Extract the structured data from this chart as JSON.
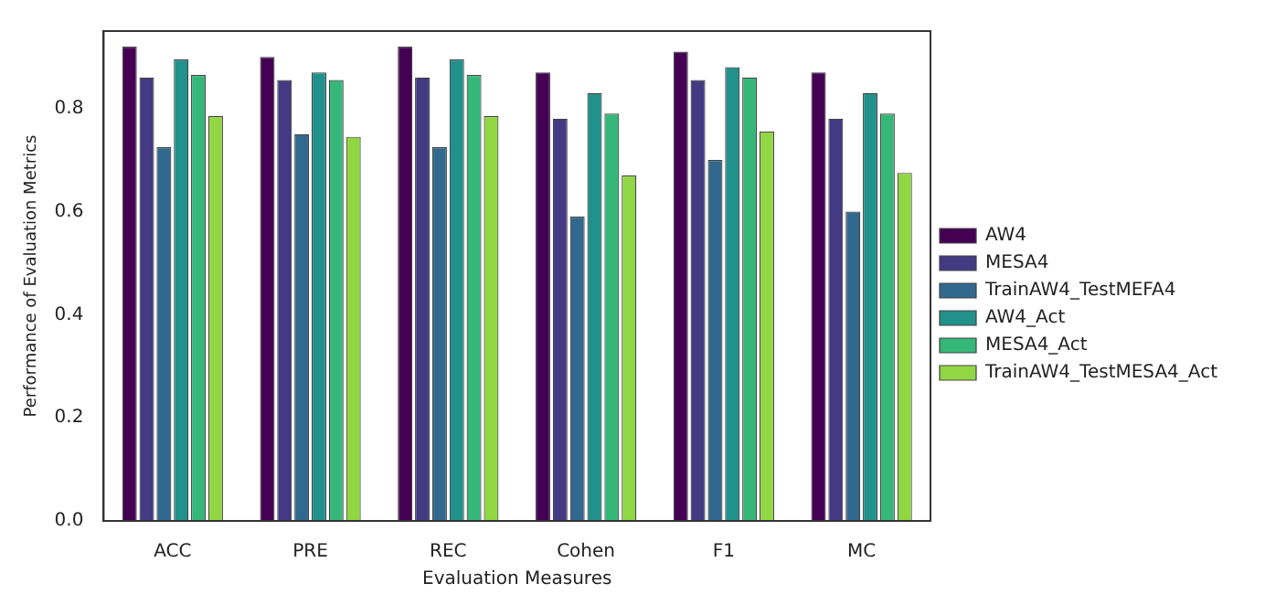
{
  "chart_data": {
    "type": "bar",
    "xlabel": "Evaluation Measures",
    "ylabel": "Performance of Evaluation Metrics",
    "categories": [
      "ACC",
      "PRE",
      "REC",
      "Cohen",
      "F1",
      "MC"
    ],
    "series": [
      {
        "name": "AW4",
        "color": "#440154",
        "values": [
          0.92,
          0.9,
          0.92,
          0.87,
          0.91,
          0.87
        ]
      },
      {
        "name": "MESA4",
        "color": "#443983",
        "values": [
          0.86,
          0.855,
          0.86,
          0.78,
          0.855,
          0.78
        ]
      },
      {
        "name": "TrainAW4_TestMEFA4",
        "color": "#31688e",
        "values": [
          0.725,
          0.75,
          0.725,
          0.59,
          0.7,
          0.6
        ]
      },
      {
        "name": "AW4_Act",
        "color": "#21918c",
        "values": [
          0.895,
          0.87,
          0.895,
          0.83,
          0.88,
          0.83
        ]
      },
      {
        "name": "MESA4_Act",
        "color": "#35b779",
        "values": [
          0.865,
          0.855,
          0.865,
          0.79,
          0.86,
          0.79
        ]
      },
      {
        "name": "TrainAW4_TestMESA4_Act",
        "color": "#90d743",
        "values": [
          0.785,
          0.745,
          0.785,
          0.67,
          0.755,
          0.675
        ]
      }
    ],
    "ylim": [
      0,
      0.95
    ],
    "yticks": [
      {
        "value": 0,
        "label": "0.0"
      },
      0.2,
      0.4,
      0.6,
      0.8
    ],
    "grid": false,
    "legend": "right"
  }
}
